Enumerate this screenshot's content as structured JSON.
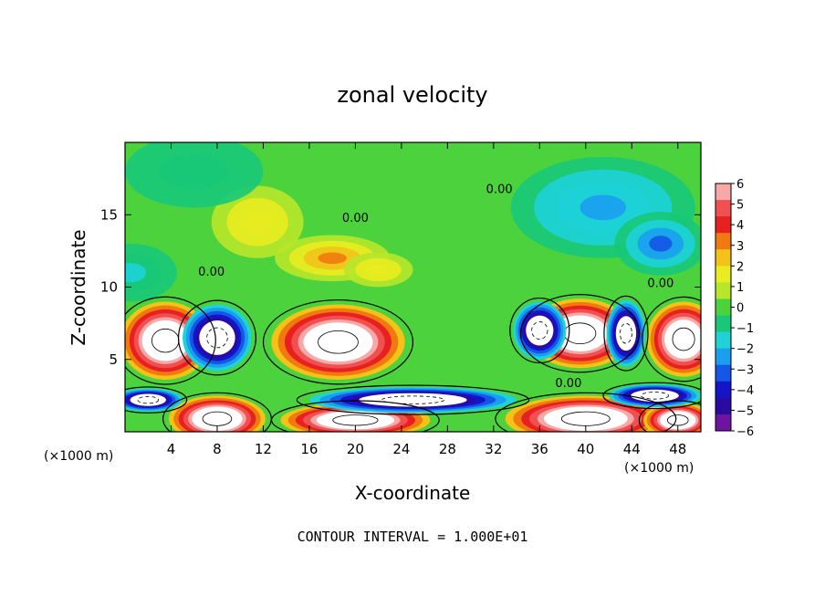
{
  "chart_data": {
    "type": "heatmap",
    "title": "zonal velocity",
    "xlabel": "X-coordinate",
    "ylabel": "Z-coordinate",
    "x_unit_left": "(×1000 m)",
    "x_unit_right": "(×1000 m)",
    "footer": "CONTOUR INTERVAL = 1.000E+01",
    "xlim": [
      0,
      50
    ],
    "ylim": [
      0,
      20
    ],
    "x_ticks": [
      4,
      8,
      12,
      16,
      20,
      24,
      28,
      32,
      36,
      40,
      44,
      48
    ],
    "y_ticks": [
      5,
      10,
      15
    ],
    "contour_label": "0.00",
    "colorbar": {
      "min": -6,
      "max": 6,
      "ticks": [
        6,
        5,
        4,
        3,
        2,
        1,
        0,
        -1,
        -2,
        -3,
        -4,
        -5,
        -6
      ],
      "colors": [
        "#f7a8a8",
        "#f05050",
        "#e82020",
        "#f07a10",
        "#f3c318",
        "#e8ec20",
        "#b8e62a",
        "#4cd23c",
        "#18c878",
        "#1ed2d8",
        "#1a9ef0",
        "#1456e6",
        "#1414c8",
        "#2a0aa0",
        "#6e14a0"
      ]
    },
    "series": [
      {
        "type": "blob",
        "x": 3.5,
        "y": 6.3,
        "rx": 3.9,
        "ry": 2.7,
        "value": 10
      },
      {
        "type": "blob",
        "x": 18.5,
        "y": 6.2,
        "rx": 5.8,
        "ry": 2.6,
        "value": 10
      },
      {
        "type": "blob",
        "x": 39.5,
        "y": 6.8,
        "rx": 4.6,
        "ry": 2.4,
        "value": 10
      },
      {
        "type": "blob",
        "x": 48.5,
        "y": 6.4,
        "rx": 3.2,
        "ry": 2.6,
        "value": 10
      },
      {
        "type": "blob",
        "x": 8,
        "y": 0.9,
        "rx": 4.2,
        "ry": 1.6,
        "value": 10
      },
      {
        "type": "blob",
        "x": 20,
        "y": 0.8,
        "rx": 6.5,
        "ry": 1.2,
        "value": 10
      },
      {
        "type": "blob",
        "x": 40,
        "y": 0.9,
        "rx": 7,
        "ry": 1.6,
        "value": 10
      },
      {
        "type": "blob",
        "x": 48,
        "y": 0.8,
        "rx": 3,
        "ry": 1.2,
        "value": 10
      },
      {
        "type": "blob",
        "x": 8,
        "y": 6.5,
        "rx": 3,
        "ry": 2.3,
        "value": -10
      },
      {
        "type": "blob",
        "x": 36,
        "y": 7,
        "rx": 2.3,
        "ry": 2.0,
        "value": -10
      },
      {
        "type": "blob",
        "x": 43.5,
        "y": 6.8,
        "rx": 1.7,
        "ry": 2.3,
        "value": -10
      },
      {
        "type": "blob",
        "x": 25,
        "y": 2.2,
        "rx": 9,
        "ry": 0.9,
        "value": -10
      },
      {
        "type": "blob",
        "x": 2,
        "y": 2.2,
        "rx": 3,
        "ry": 0.8,
        "value": -10
      },
      {
        "type": "blob",
        "x": 46,
        "y": 2.5,
        "rx": 4,
        "ry": 0.8,
        "value": -10
      },
      {
        "type": "blob",
        "x": 18,
        "y": 12.0,
        "rx": 5,
        "ry": 1.6,
        "value": 3
      },
      {
        "type": "blob",
        "x": 11.5,
        "y": 14.5,
        "rx": 4,
        "ry": 2.5,
        "value": 2
      },
      {
        "type": "blob",
        "x": 22,
        "y": 11.2,
        "rx": 3,
        "ry": 1.2,
        "value": 2
      },
      {
        "type": "blob",
        "x": 41.5,
        "y": 15.5,
        "rx": 8,
        "ry": 3.5,
        "value": -2.5
      },
      {
        "type": "blob",
        "x": 46.5,
        "y": 13,
        "rx": 4,
        "ry": 2.2,
        "value": -3
      },
      {
        "type": "blob",
        "x": 0.5,
        "y": 11,
        "rx": 4,
        "ry": 2,
        "value": -1.5
      },
      {
        "type": "blob",
        "x": 6,
        "y": 18,
        "rx": 6,
        "ry": 2.5,
        "value": -1
      }
    ],
    "grid": false,
    "legend": "right"
  }
}
